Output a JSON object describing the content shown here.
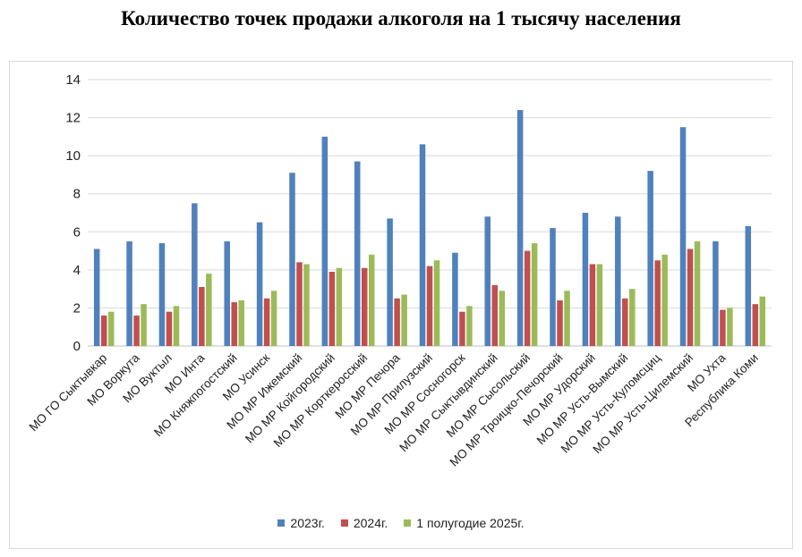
{
  "chart_data": {
    "type": "bar",
    "title": "Количество точек продажи алкоголя на 1 тысячу населения",
    "xlabel": "",
    "ylabel": "",
    "ylim": [
      0,
      14
    ],
    "yticks": [
      0,
      2,
      4,
      6,
      8,
      10,
      12,
      14
    ],
    "grid": true,
    "legend_position": "bottom",
    "categories": [
      "МО ГО Сыктывкар",
      "МО Воркута",
      "МО Вуктыл",
      "МО Инта",
      "МО Княжпогостский",
      "МО Усинск",
      "МО МР Ижемский",
      "МО МР Койгородский",
      "МО МР Корткеросский",
      "МО МР Печора",
      "МО МР Прилузский",
      "МО МР Сосногорск",
      "МО МР Сыктывдинский",
      "МО МР Сысольский",
      "МО МР Троицко-Печорский",
      "МО МР Удорский",
      "МО МР Усть-Вымский",
      "МО МР Усть-Куломсциц",
      "МО МР Усть-Цилемский",
      "МО Ухта",
      "Республика Коми"
    ],
    "series": [
      {
        "name": "2023г.",
        "color": "#4f81bd",
        "values": [
          5.1,
          5.5,
          5.4,
          7.5,
          5.5,
          6.5,
          9.1,
          11.0,
          9.7,
          6.7,
          10.6,
          4.9,
          6.8,
          12.4,
          6.2,
          7.0,
          6.8,
          9.2,
          11.5,
          5.5,
          6.3
        ]
      },
      {
        "name": "2024г.",
        "color": "#c0504d",
        "values": [
          1.6,
          1.6,
          1.8,
          3.1,
          2.3,
          2.5,
          4.4,
          3.9,
          4.1,
          2.5,
          4.2,
          1.8,
          3.2,
          5.0,
          2.4,
          4.3,
          2.5,
          4.5,
          5.1,
          1.9,
          2.2
        ]
      },
      {
        "name": "1 полугодие 2025г.",
        "color": "#9bbb59",
        "values": [
          1.8,
          2.2,
          2.1,
          3.8,
          2.4,
          2.9,
          4.3,
          4.1,
          4.8,
          2.7,
          4.5,
          2.1,
          2.9,
          5.4,
          2.9,
          4.3,
          3.0,
          4.8,
          5.5,
          2.0,
          2.6
        ]
      }
    ]
  }
}
